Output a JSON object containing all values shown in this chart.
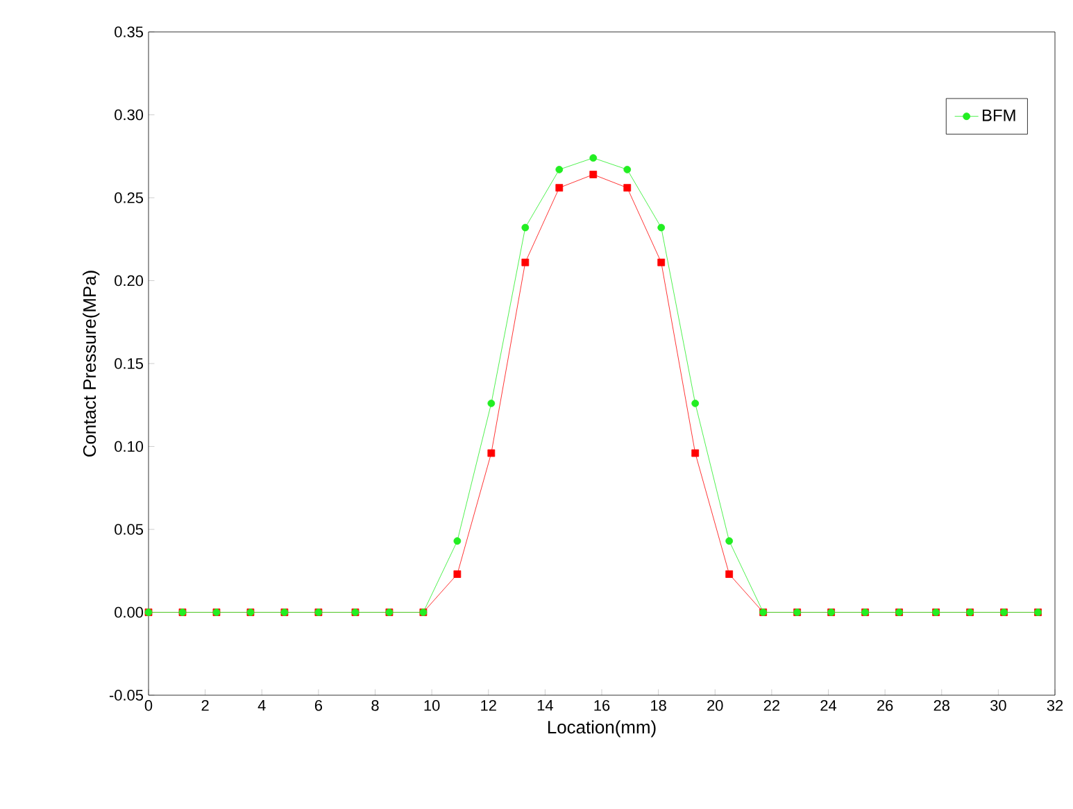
{
  "chart_data": {
    "type": "line",
    "xlabel": "Location(mm)",
    "ylabel": "Contact Pressure(MPa)",
    "x": [
      0,
      1.2,
      2.4,
      3.6,
      4.8,
      6.0,
      7.3,
      8.5,
      9.7,
      10.9,
      12.1,
      13.3,
      14.5,
      15.7,
      16.9,
      18.1,
      19.3,
      20.5,
      21.7,
      22.9,
      24.1,
      25.3,
      26.5,
      27.8,
      29.0,
      30.2,
      31.4
    ],
    "series": [
      {
        "color": "#ff0000",
        "marker": "square",
        "values": [
          0,
          0,
          0,
          0,
          0,
          0,
          0,
          0,
          0,
          0.023,
          0.096,
          0.211,
          0.256,
          0.264,
          0.256,
          0.211,
          0.096,
          0.023,
          0,
          0,
          0,
          0,
          0,
          0,
          0,
          0,
          0
        ]
      },
      {
        "name": "BFM",
        "color": "#22ee22",
        "marker": "circle",
        "values": [
          0,
          0,
          0,
          0,
          0,
          0,
          0,
          0,
          0,
          0.043,
          0.126,
          0.232,
          0.267,
          0.274,
          0.267,
          0.232,
          0.126,
          0.043,
          0,
          0,
          0,
          0,
          0,
          0,
          0,
          0,
          0
        ]
      }
    ],
    "xlim": [
      0,
      32
    ],
    "xticks": [
      0,
      2,
      4,
      6,
      8,
      10,
      12,
      14,
      16,
      18,
      20,
      22,
      24,
      26,
      28,
      30,
      32
    ],
    "ylim": [
      -0.05,
      0.35
    ],
    "yticks": [
      {
        "value": -0.05,
        "label": "-0.05"
      },
      {
        "value": 0,
        "label": "0.00"
      },
      {
        "value": 0.05,
        "label": "0.05"
      },
      {
        "value": 0.1,
        "label": "0.10"
      },
      {
        "value": 0.15,
        "label": "0.15"
      },
      {
        "value": 0.2,
        "label": "0.20"
      },
      {
        "value": 0.25,
        "label": "0.25"
      },
      {
        "value": 0.3,
        "label": "0.30"
      },
      {
        "value": 0.35,
        "label": "0.35"
      }
    ],
    "legend": "top right",
    "line_style": "solid",
    "grid": false
  }
}
